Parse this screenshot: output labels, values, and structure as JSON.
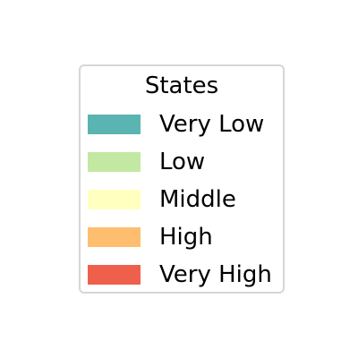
{
  "chart_data": {
    "type": "legend",
    "legend": {
      "title": "States",
      "placement": "center",
      "entries": [
        {
          "label": "Very Low",
          "color": "#5ab4b1"
        },
        {
          "label": "Low",
          "color": "#c3e8a2"
        },
        {
          "label": "Middle",
          "color": "#ffffbf"
        },
        {
          "label": "High",
          "color": "#fdbf6f"
        },
        {
          "label": "Very High",
          "color": "#ef604c"
        }
      ]
    }
  }
}
